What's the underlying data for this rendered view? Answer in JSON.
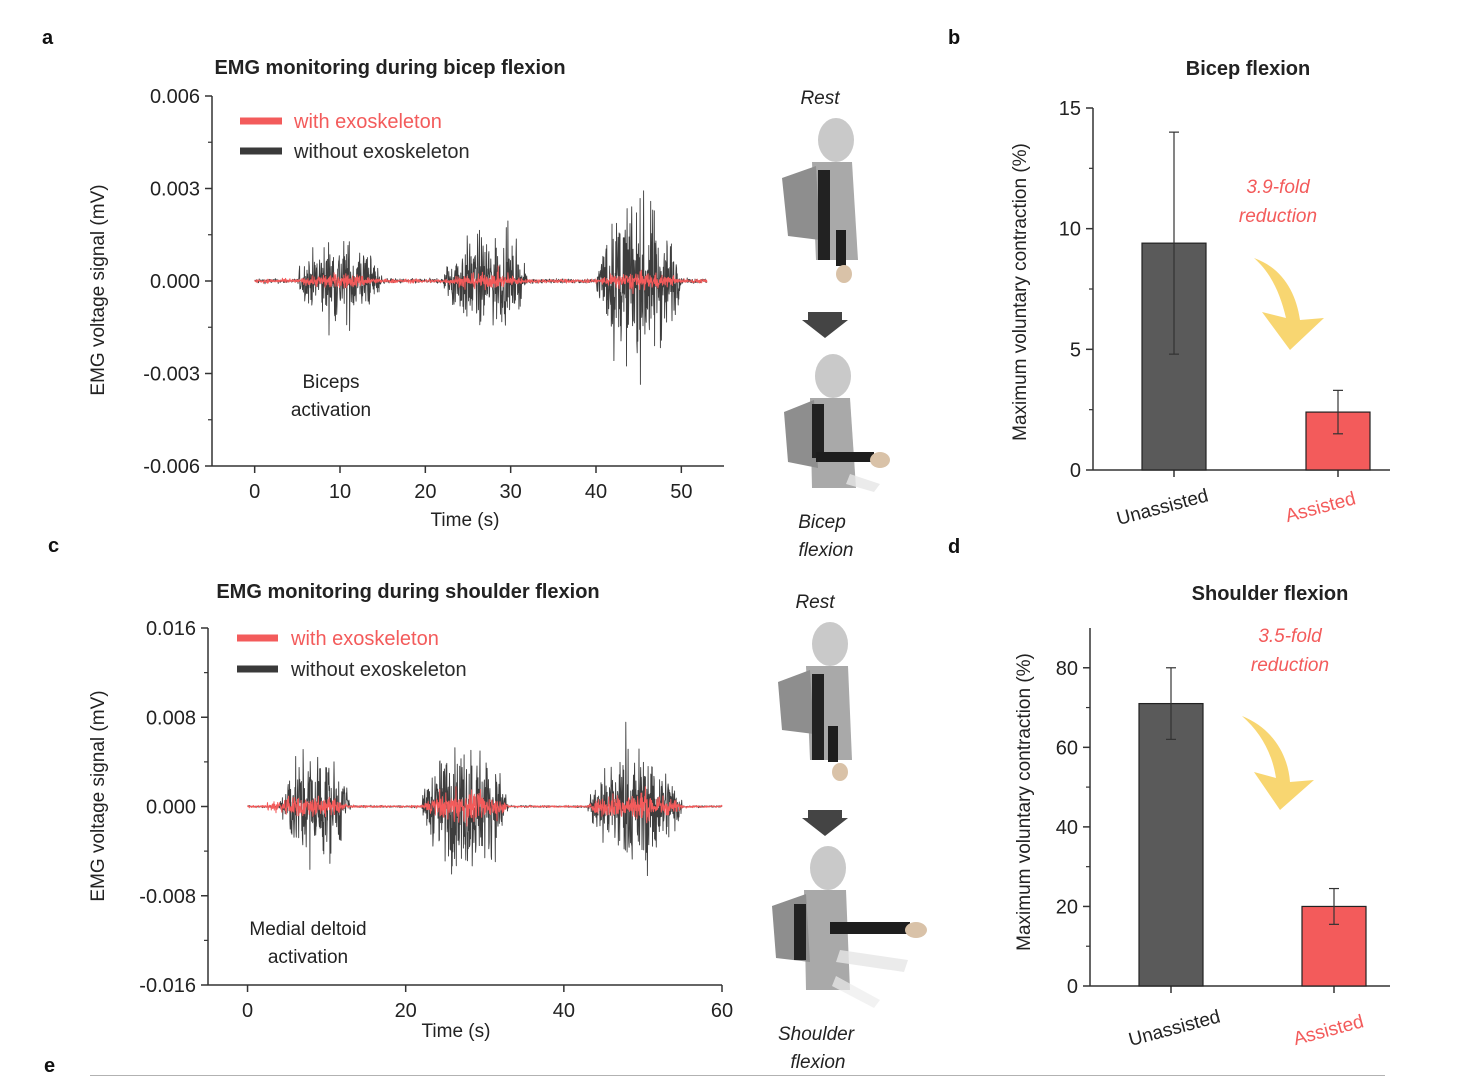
{
  "panels": {
    "a": "a",
    "b": "b",
    "c": "c",
    "d": "d",
    "e": "e"
  },
  "colors": {
    "with": "#f35b5b",
    "without": "#4a4a4a",
    "arrow": "#f5c842",
    "arrow_dark": "#444444",
    "person": "#b3b3b3"
  },
  "chart_data": [
    {
      "id": "a",
      "type": "line",
      "title": "EMG monitoring during bicep flexion",
      "xlabel": "Time (s)",
      "ylabel": "EMG voltage signal (mV)",
      "xlim": [
        -5,
        55
      ],
      "ylim": [
        -0.006,
        0.006
      ],
      "xticks": [
        "0",
        "10",
        "20",
        "30",
        "40",
        "50"
      ],
      "xtick_values": [
        0,
        10,
        20,
        30,
        40,
        50
      ],
      "yticks": [
        "0.006",
        "0.003",
        "0.000",
        "-0.003",
        "-0.006"
      ],
      "ytick_values": [
        0.006,
        0.003,
        0.0,
        -0.003,
        -0.006
      ],
      "series": [
        {
          "name": "without exoskeleton",
          "bursts": [
            [
              5,
              15,
              0.0022
            ],
            [
              22,
              32,
              0.0025
            ],
            [
              40,
              50,
              0.0042
            ]
          ],
          "baseline": 0.00012
        },
        {
          "name": "with exoskeleton",
          "bursts": [
            [
              5,
              15,
              0.0004
            ],
            [
              22,
              32,
              0.0004
            ],
            [
              40,
              50,
              0.00045
            ]
          ],
          "baseline": 0.0001
        }
      ],
      "xrange": [
        0,
        53
      ],
      "annotation": [
        "Biceps",
        "activation"
      ]
    },
    {
      "id": "c",
      "type": "line",
      "title": "EMG monitoring during shoulder flexion",
      "xlabel": "Time (s)",
      "ylabel": "EMG voltage signal (mV)",
      "xlim": [
        -5,
        60
      ],
      "ylim": [
        -0.016,
        0.016
      ],
      "xticks": [
        "0",
        "20",
        "40",
        "60"
      ],
      "xtick_values": [
        0,
        20,
        40,
        60
      ],
      "yticks": [
        "0.016",
        "0.008",
        "0.000",
        "-0.008",
        "-0.016"
      ],
      "ytick_values": [
        0.016,
        0.008,
        0.0,
        -0.008,
        -0.016
      ],
      "series": [
        {
          "name": "without exoskeleton",
          "bursts": [
            [
              4,
              13,
              0.0085
            ],
            [
              22,
              33,
              0.0095
            ],
            [
              43,
              55,
              0.0085
            ]
          ],
          "baseline": 0.00015
        },
        {
          "name": "with exoskeleton",
          "bursts": [
            [
              2,
              13,
              0.0016
            ],
            [
              22,
              33,
              0.0022
            ],
            [
              43,
              55,
              0.0022
            ]
          ],
          "baseline": 0.00015
        }
      ],
      "xrange": [
        0,
        60
      ],
      "annotation": [
        "Medial deltoid",
        "activation"
      ]
    },
    {
      "id": "b",
      "type": "bar",
      "title": "Bicep flexion",
      "ylabel": "Maximum voluntary contraction (%)",
      "categories": [
        "Unassisted",
        "Assisted"
      ],
      "values": [
        9.4,
        2.4
      ],
      "errors": [
        4.6,
        0.9
      ],
      "ylim": [
        0,
        15
      ],
      "yticks": [
        "0",
        "5",
        "10",
        "15"
      ],
      "ytick_values": [
        0,
        5,
        10,
        15
      ],
      "annotation": [
        "3.9-fold",
        "reduction"
      ]
    },
    {
      "id": "d",
      "type": "bar",
      "title": "Shoulder flexion",
      "ylabel": "Maximum voluntary contraction (%)",
      "categories": [
        "Unassisted",
        "Assisted"
      ],
      "values": [
        71,
        20
      ],
      "errors": [
        9,
        4.5
      ],
      "ylim": [
        0,
        90
      ],
      "yticks": [
        "0",
        "20",
        "40",
        "60",
        "80"
      ],
      "ytick_values": [
        0,
        20,
        40,
        60,
        80
      ],
      "annotation": [
        "3.5-fold",
        "reduction"
      ]
    }
  ],
  "illustrations": {
    "bicep": {
      "top": "Rest",
      "bottom": [
        "Bicep",
        "flexion"
      ]
    },
    "shoulder": {
      "top": "Rest",
      "bottom": [
        "Shoulder",
        "flexion"
      ]
    }
  }
}
